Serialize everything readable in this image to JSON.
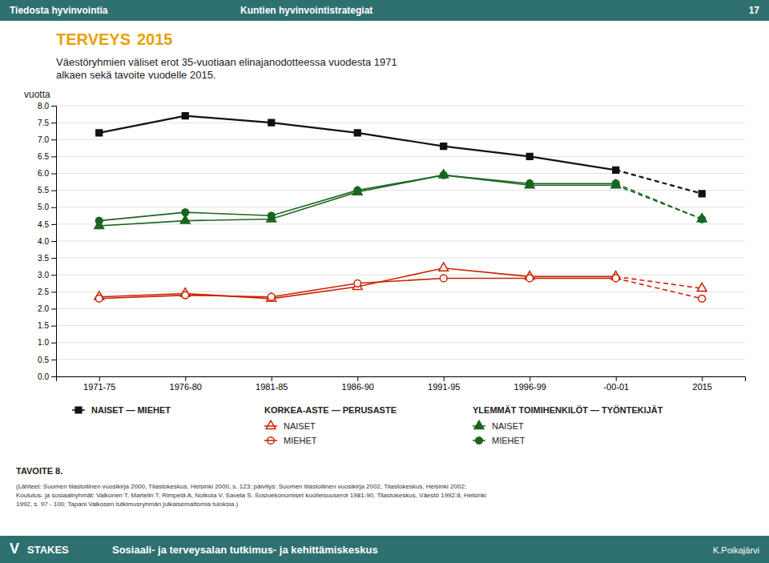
{
  "chart_data": {
    "type": "line",
    "title": "Väestöryhmien väliset erot 35-vuotiaan elinajanodotteessa vuodesta 1971\nalkaen sekä tavoite vuodelle 2015.",
    "ylabel": "vuotta",
    "categories": [
      "1971-75",
      "1976-80",
      "1981-85",
      "1986-90",
      "1991-95",
      "1996-99",
      "-00-01",
      "2015"
    ],
    "series": [
      {
        "name": "NAISET — MIEHET",
        "color": "#111111",
        "marker": "square",
        "line_style": "solid-dashed-end",
        "values": [
          7.2,
          7.7,
          7.5,
          7.2,
          6.8,
          6.5,
          6.1,
          5.4
        ]
      },
      {
        "name": "NAISET",
        "group": "KORKEA-ASTE — PERUSASTE",
        "color": "#cc2200",
        "marker": "triangle-open",
        "line_style": "solid-dashed-end",
        "values": [
          2.35,
          2.45,
          2.3,
          2.65,
          3.2,
          2.95,
          2.95,
          2.6
        ]
      },
      {
        "name": "MIEHET",
        "group": "KORKEA-ASTE — PERUSASTE",
        "color": "#cc2200",
        "marker": "circle-open",
        "line_style": "solid-dashed-end",
        "values": [
          2.3,
          2.4,
          2.35,
          2.75,
          2.9,
          2.9,
          2.9,
          2.3
        ]
      },
      {
        "name": "NAISET",
        "group": "YLEMMÄT TOIMIHENKILÖT — TYÖNTEKIJÄT",
        "color": "#1a6620",
        "marker": "triangle",
        "line_style": "solid-dashed-end",
        "values": [
          4.45,
          4.6,
          4.65,
          5.45,
          5.95,
          5.65,
          5.65,
          4.65
        ]
      },
      {
        "name": "MIEHET",
        "group": "YLEMMÄT TOIMIHENKILÖT — TYÖNTEKIJÄT",
        "color": "#1a6620",
        "marker": "circle",
        "line_style": "solid-dashed-end",
        "values": [
          4.6,
          4.85,
          4.75,
          5.5,
          5.95,
          5.7,
          5.7,
          4.65
        ]
      }
    ],
    "ylim": [
      0.0,
      8.0
    ],
    "yticks": [
      {
        "value": 0,
        "label": "0.0"
      },
      0.5,
      {
        "value": 1,
        "label": "1.0"
      },
      1.5,
      {
        "value": 2,
        "label": "2.0"
      },
      2.5,
      {
        "value": 3,
        "label": "3.0"
      },
      3.5,
      {
        "value": 4,
        "label": "4.0"
      },
      4.5,
      {
        "value": 5,
        "label": "5.0"
      },
      5.5,
      {
        "value": 6,
        "label": "6.0"
      },
      6.5,
      {
        "value": 7,
        "label": "7.0"
      },
      7.5,
      {
        "value": 8,
        "label": "8.0"
      }
    ],
    "grid": true,
    "legend": "bottom",
    "header_texts": [
      "Tiedosta hyvinvointia",
      "Kuntien hyvinvointistrategiat",
      "17"
    ],
    "banner_texts": [
      "TERVEYS",
      "2015"
    ],
    "footer_texts": [
      "V",
      "STAKES",
      "Sosiaali- ja terveysalan tutkimus- ja kehittämiskeskus",
      "K.Poikajärvi"
    ],
    "note_title": "TAVOITE 8.",
    "note": "(Lähteet: Suomen tilastollinen vuosikirja 2000, Tilastokeskus, Helsinki 2000, s. 123;  päivitys: Suomen tilastollinen vuosikirja 2002, Tilastokeskus, Helsinki 2002;\nKoulutus- ja sosiaaliryhmät: Valkonen T, Martelin T, Rimpelä A, Notkola V, Savela S. Sosioekonomiset kuolleisuuserot 1981-90, Tilastokeskus, Väestö 1992:8, Helsinki\n1992, s. 97 - 100; Tapani Valkosen tutkimusryhmän julkaisemattomia tuloksia.)"
  }
}
